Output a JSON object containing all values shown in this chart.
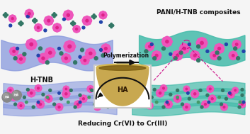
{
  "bg_color": "#f5f5f5",
  "title_top_right": "PANI/H-TNB composites",
  "label_h_tnb": "H-TNB",
  "label_bottom": "Reducing Cr(VI) to Cr(III)",
  "label_arrow": "Polymerization",
  "label_ha": "HA",
  "wave_left_color": "#8899dd",
  "wave_right_color": "#44bbaa",
  "arrow_color": "#111111",
  "dashed_color": "#cc1188",
  "petal_color": "#ee55bb",
  "center_color": "#dd2288",
  "teal_dot": "#337766",
  "blue_dot": "#2244aa",
  "green_dot": "#449966",
  "gray_sphere": "#888888",
  "dish_body": "#c8a850",
  "dish_dark": "#7a5a10",
  "dish_rim": "#d4b855"
}
